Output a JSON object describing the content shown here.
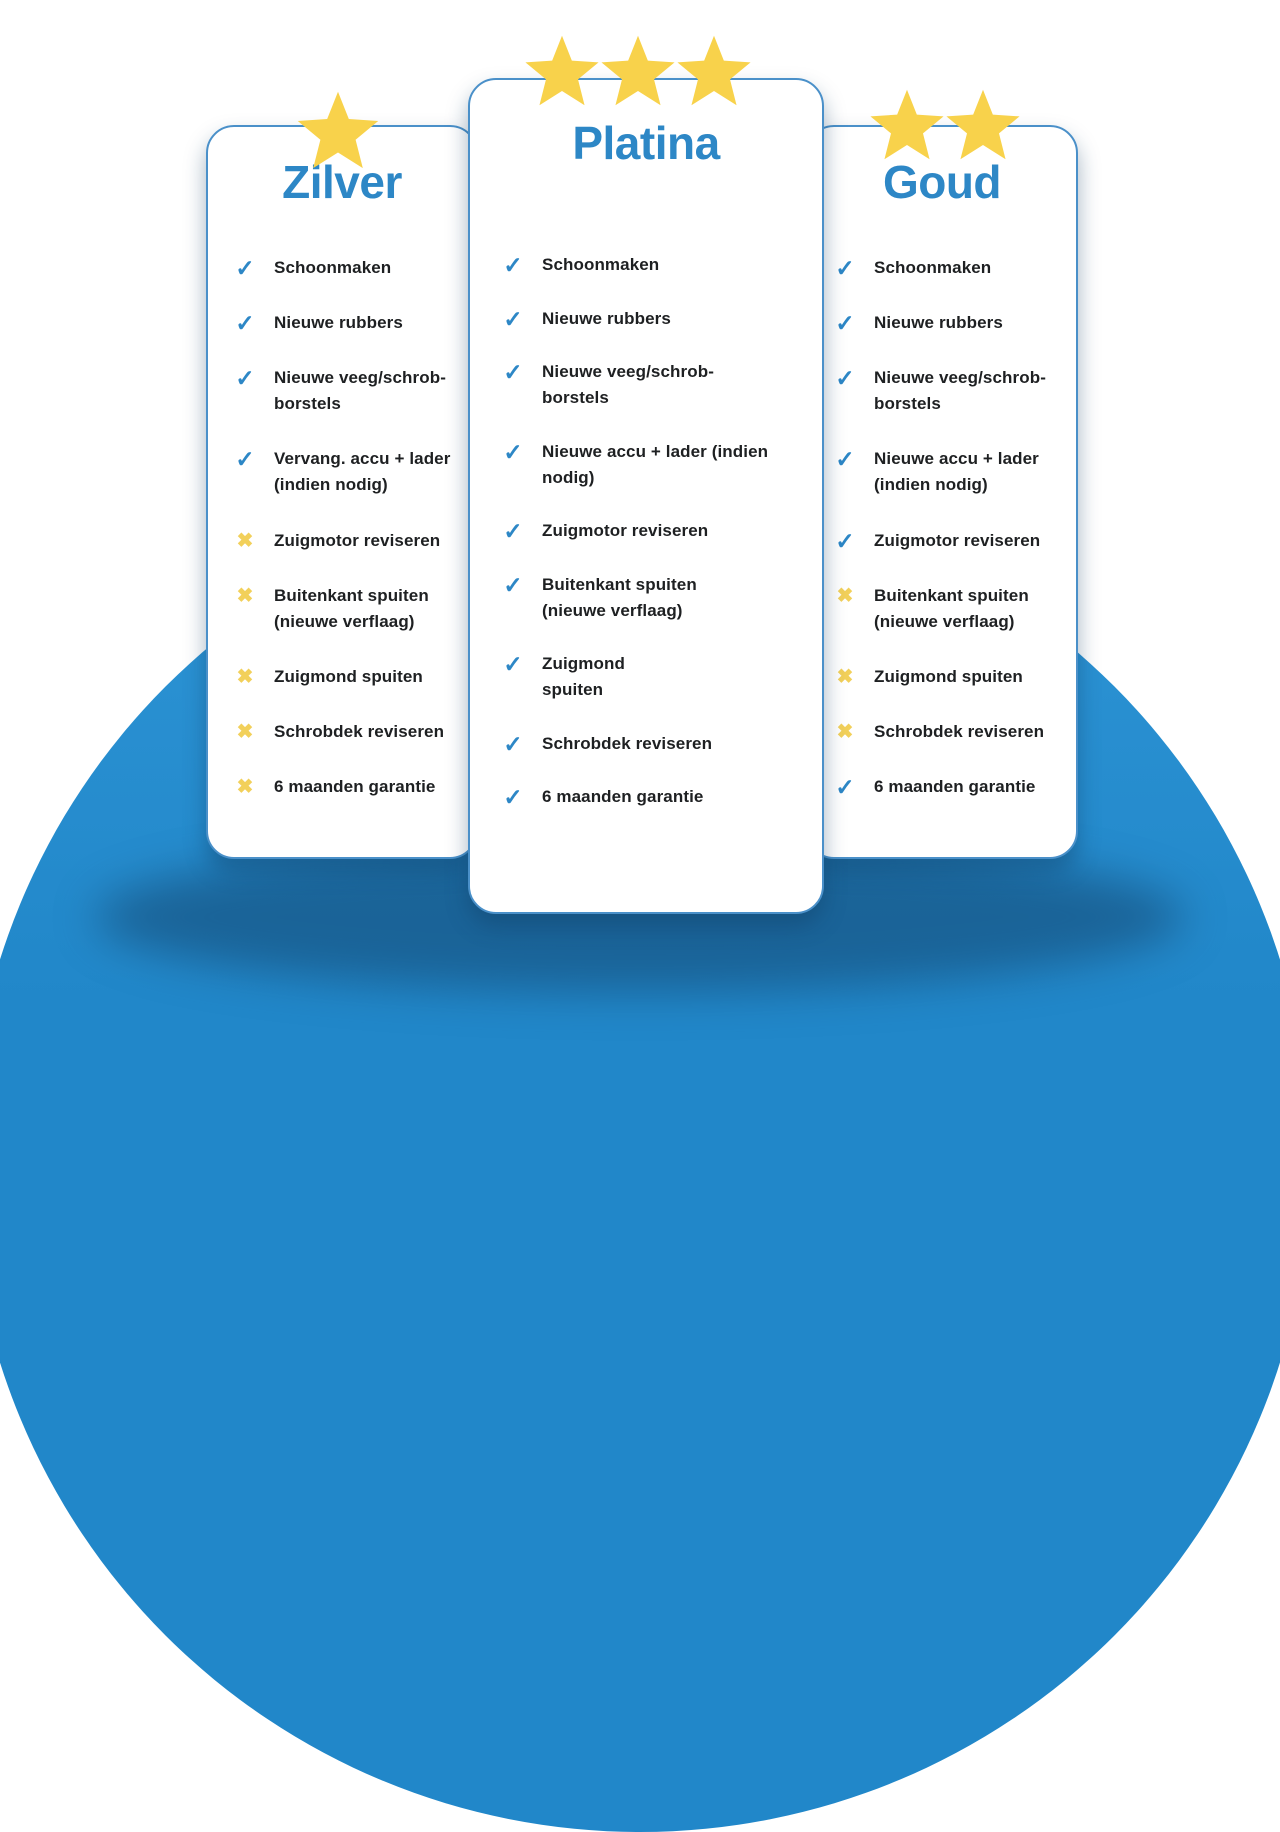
{
  "colors": {
    "accent_blue": "#2d87c6",
    "card_border": "#4a90c9",
    "star_yellow": "#f8d24b",
    "cross_yellow": "#f2d05a",
    "ground_blue": "#2187c9",
    "ground_blue_light": "#2e95d6",
    "text_dark": "#1e2022"
  },
  "icons": {
    "check": "✓",
    "cross": "✖",
    "star": "star-icon"
  },
  "cards": [
    {
      "id": "zilver",
      "title": "Zilver",
      "stars": 1,
      "items": [
        {
          "label": "Schoonmaken",
          "included": true
        },
        {
          "label": "Nieuwe rubbers",
          "included": true
        },
        {
          "label": "Nieuwe veeg/schrob-\nborstels",
          "included": true
        },
        {
          "label": "Vervang. accu + lader\n(indien nodig)",
          "included": true
        },
        {
          "label": "Zuigmotor reviseren",
          "included": false
        },
        {
          "label": "Buitenkant spuiten\n(nieuwe verflaag)",
          "included": false
        },
        {
          "label": "Zuigmond spuiten",
          "included": false
        },
        {
          "label": "Schrobdek reviseren",
          "included": false
        },
        {
          "label": "6 maanden garantie",
          "included": false
        }
      ]
    },
    {
      "id": "platina",
      "title": "Platina",
      "stars": 3,
      "items": [
        {
          "label": "Schoonmaken",
          "included": true
        },
        {
          "label": "Nieuwe rubbers",
          "included": true
        },
        {
          "label": "Nieuwe veeg/schrob-\nborstels",
          "included": true
        },
        {
          "label": "Nieuwe accu + lader (indien\nnodig)",
          "included": true
        },
        {
          "label": "Zuigmotor reviseren",
          "included": true
        },
        {
          "label": "Buitenkant spuiten\n(nieuwe verflaag)",
          "included": true
        },
        {
          "label": "Zuigmond\nspuiten",
          "included": true
        },
        {
          "label": "Schrobdek reviseren",
          "included": true
        },
        {
          "label": "6 maanden garantie",
          "included": true
        }
      ]
    },
    {
      "id": "goud",
      "title": "Goud",
      "stars": 2,
      "items": [
        {
          "label": "Schoonmaken",
          "included": true
        },
        {
          "label": "Nieuwe rubbers",
          "included": true
        },
        {
          "label": "Nieuwe veeg/schrob-\nborstels",
          "included": true
        },
        {
          "label": "Nieuwe accu + lader\n(indien nodig)",
          "included": true
        },
        {
          "label": "Zuigmotor reviseren",
          "included": true
        },
        {
          "label": "Buitenkant spuiten\n(nieuwe verflaag)",
          "included": false
        },
        {
          "label": "Zuigmond spuiten",
          "included": false
        },
        {
          "label": "Schrobdek reviseren",
          "included": false
        },
        {
          "label": "6 maanden garantie",
          "included": true
        }
      ]
    }
  ]
}
